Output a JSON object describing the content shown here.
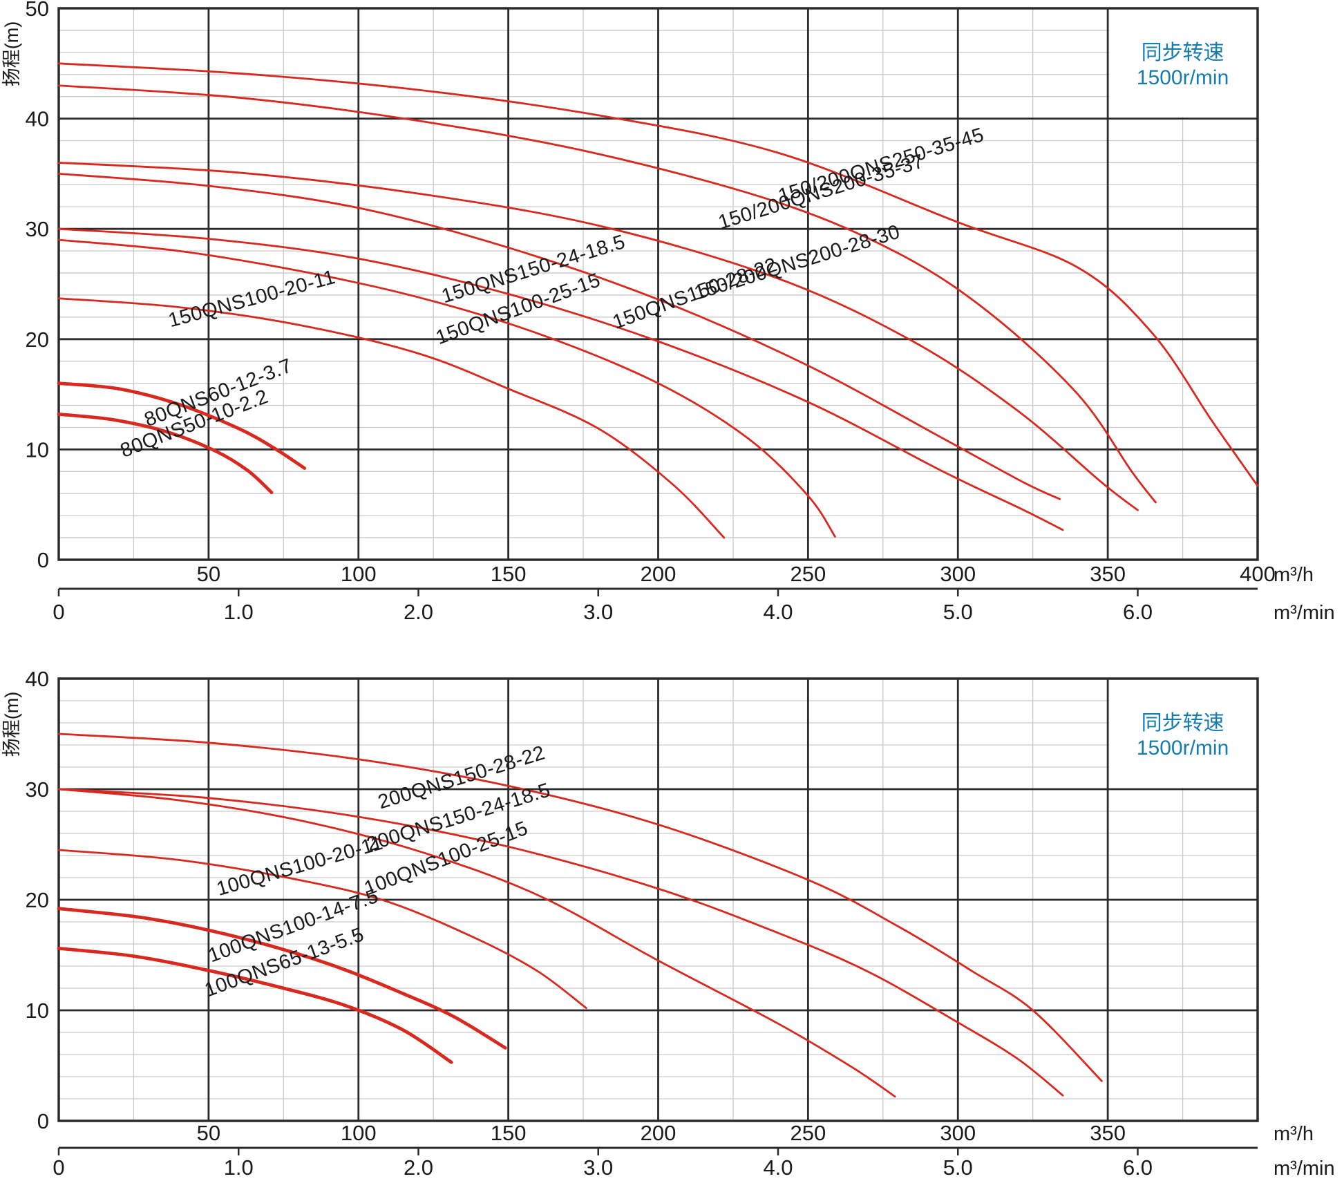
{
  "page": {
    "background": "#ffffff"
  },
  "colors": {
    "curve": "#d9291f",
    "annotation_text": "#157cb0",
    "grid_major": "#2b2b2b",
    "grid_minor": "#c9c9c9",
    "text": "#1a1a1a"
  },
  "chart_data": [
    {
      "type": "line",
      "title": "",
      "y_axis": {
        "title": "扬程(m)",
        "min": 0,
        "max": 50,
        "major_step": 10,
        "minor_step": 2,
        "ticks": [
          0,
          10,
          20,
          30,
          40,
          50
        ]
      },
      "x_axis": {
        "unit": "m³/h",
        "min": 0,
        "max": 400,
        "major_step": 50,
        "minor_step": 25,
        "tick_labels": [
          50,
          100,
          150,
          200,
          250,
          300,
          350,
          400
        ]
      },
      "x_axis_secondary": {
        "unit": "m³/min",
        "tick_labels": [
          "0",
          "1.0",
          "2.0",
          "3.0",
          "4.0",
          "5.0",
          "6.0"
        ],
        "m3h_per_unit": 60
      },
      "annotation": {
        "lines": [
          "同步转速",
          "1500r/min"
        ]
      },
      "series": [
        {
          "name": "150/200QNS250-35-45",
          "bold": false,
          "points": [
            [
              0,
              45
            ],
            [
              60,
              44.1
            ],
            [
              120,
              42.6
            ],
            [
              180,
              40.3
            ],
            [
              240,
              36.9
            ],
            [
              300,
              30.6
            ],
            [
              340,
              26.5
            ],
            [
              365,
              20.5
            ],
            [
              385,
              12.5
            ],
            [
              400,
              6.7
            ]
          ],
          "label": {
            "x": 275,
            "y": 35.2,
            "angle": -17
          }
        },
        {
          "name": "150/200QNS200-35-37",
          "bold": false,
          "points": [
            [
              0,
              43
            ],
            [
              60,
              41.9
            ],
            [
              120,
              39.8
            ],
            [
              180,
              36.8
            ],
            [
              240,
              32.4
            ],
            [
              280,
              27.8
            ],
            [
              310,
              22.5
            ],
            [
              340,
              15
            ],
            [
              358,
              8
            ],
            [
              366,
              5.2
            ]
          ],
          "label": {
            "x": 255,
            "y": 32.8,
            "angle": -17
          }
        },
        {
          "name": "150/200QNS200-28-30",
          "bold": false,
          "points": [
            [
              0,
              36
            ],
            [
              60,
              35.1
            ],
            [
              120,
              33.2
            ],
            [
              180,
              30.3
            ],
            [
              240,
              25.5
            ],
            [
              285,
              19.8
            ],
            [
              320,
              13.5
            ],
            [
              348,
              7
            ],
            [
              360,
              4.5
            ]
          ],
          "label": {
            "x": 247,
            "y": 26.4,
            "angle": -17
          }
        },
        {
          "name": "150QNS150-28-22",
          "bold": false,
          "points": [
            [
              0,
              35
            ],
            [
              50,
              33.9
            ],
            [
              100,
              31.9
            ],
            [
              150,
              28.3
            ],
            [
              200,
              23.6
            ],
            [
              250,
              17.6
            ],
            [
              295,
              11
            ],
            [
              322,
              7
            ],
            [
              334,
              5.5
            ]
          ],
          "label": {
            "x": 213,
            "y": 23.6,
            "angle": -20
          }
        },
        {
          "name": "150QNS150-24-18.5",
          "bold": false,
          "points": [
            [
              0,
              30
            ],
            [
              50,
              29.1
            ],
            [
              100,
              27.3
            ],
            [
              150,
              24.1
            ],
            [
              200,
              19.8
            ],
            [
              250,
              14.3
            ],
            [
              295,
              8
            ],
            [
              322,
              4.5
            ],
            [
              335,
              2.7
            ]
          ],
          "label": {
            "x": 159,
            "y": 25.8,
            "angle": -17
          }
        },
        {
          "name": "150QNS100-25-15",
          "bold": false,
          "points": [
            [
              0,
              29
            ],
            [
              40,
              28
            ],
            [
              80,
              26.2
            ],
            [
              120,
              23.8
            ],
            [
              160,
              20.5
            ],
            [
              200,
              16
            ],
            [
              230,
              11
            ],
            [
              250,
              5.8
            ],
            [
              259,
              2.1
            ]
          ],
          "label": {
            "x": 154,
            "y": 22.2,
            "angle": -20
          }
        },
        {
          "name": "150QNS100-20-11",
          "bold": false,
          "points": [
            [
              0,
              23.7
            ],
            [
              40,
              22.9
            ],
            [
              80,
              21.3
            ],
            [
              120,
              18.7
            ],
            [
              150,
              15.5
            ],
            [
              180,
              11.9
            ],
            [
              205,
              6.8
            ],
            [
              222,
              2
            ]
          ],
          "label": {
            "x": 65,
            "y": 23.1,
            "angle": -15
          }
        },
        {
          "name": "80QNS60-12-3.7",
          "bold": true,
          "points": [
            [
              0,
              16
            ],
            [
              20,
              15.5
            ],
            [
              40,
              14.1
            ],
            [
              60,
              11.9
            ],
            [
              72,
              10.1
            ],
            [
              82,
              8.3
            ]
          ],
          "label": {
            "x": 54,
            "y": 14.6,
            "angle": -21
          }
        },
        {
          "name": "80QNS50-10-2.2",
          "bold": true,
          "points": [
            [
              0,
              13.2
            ],
            [
              18,
              12.7
            ],
            [
              36,
              11.6
            ],
            [
              52,
              9.9
            ],
            [
              63,
              8.1
            ],
            [
              71,
              6.1
            ]
          ],
          "label": {
            "x": 46,
            "y": 11.8,
            "angle": -21
          }
        }
      ]
    },
    {
      "type": "line",
      "title": "",
      "y_axis": {
        "title": "扬程(m)",
        "min": 0,
        "max": 40,
        "major_step": 10,
        "minor_step": 2,
        "ticks": [
          0,
          10,
          20,
          30,
          40
        ]
      },
      "x_axis": {
        "unit": "m³/h",
        "min": 0,
        "max": 400,
        "major_step": 50,
        "minor_step": 25,
        "tick_labels": [
          50,
          100,
          150,
          200,
          250,
          300,
          350
        ]
      },
      "x_axis_secondary": {
        "unit": "m³/min",
        "tick_labels": [
          "0",
          "1.0",
          "2.0",
          "3.0",
          "4.0",
          "5.0",
          "6.0"
        ],
        "m3h_per_unit": 60
      },
      "annotation": {
        "lines": [
          "同步转速",
          "1500r/min"
        ]
      },
      "series": [
        {
          "name": "200QNS150-28-22",
          "bold": false,
          "points": [
            [
              0,
              35
            ],
            [
              50,
              34.2
            ],
            [
              100,
              32.7
            ],
            [
              150,
              30.3
            ],
            [
              200,
              26.8
            ],
            [
              250,
              21.8
            ],
            [
              280,
              17.6
            ],
            [
              305,
              13.5
            ],
            [
              325,
              10
            ],
            [
              348,
              3.6
            ]
          ],
          "label": {
            "x": 135,
            "y": 30.5,
            "angle": -17
          }
        },
        {
          "name": "200QNS150-24-18.5",
          "bold": false,
          "points": [
            [
              0,
              30
            ],
            [
              50,
              29.2
            ],
            [
              100,
              27.5
            ],
            [
              150,
              24.8
            ],
            [
              200,
              21
            ],
            [
              240,
              17
            ],
            [
              270,
              13.5
            ],
            [
              300,
              8.9
            ],
            [
              320,
              5.6
            ],
            [
              335,
              2.3
            ]
          ],
          "label": {
            "x": 134,
            "y": 26.9,
            "angle": -17
          }
        },
        {
          "name": "100QNS100-25-15",
          "bold": false,
          "points": [
            [
              0,
              30
            ],
            [
              40,
              29
            ],
            [
              80,
              27.2
            ],
            [
              120,
              24.4
            ],
            [
              160,
              20.4
            ],
            [
              200,
              14.5
            ],
            [
              240,
              8.8
            ],
            [
              265,
              4.8
            ],
            [
              279,
              2.2
            ]
          ],
          "label": {
            "x": 130,
            "y": 23.2,
            "angle": -21
          }
        },
        {
          "name": "100QNS100-20-11",
          "bold": false,
          "points": [
            [
              0,
              24.5
            ],
            [
              40,
              23.6
            ],
            [
              80,
              21.8
            ],
            [
              110,
              19.8
            ],
            [
              140,
              16.4
            ],
            [
              160,
              13.5
            ],
            [
              176,
              10.2
            ]
          ],
          "label": {
            "x": 81,
            "y": 22.5,
            "angle": -16
          }
        },
        {
          "name": "100QNS100-14-7.5",
          "bold": true,
          "points": [
            [
              0,
              19.2
            ],
            [
              30,
              18.3
            ],
            [
              60,
              16.6
            ],
            [
              90,
              14.2
            ],
            [
              115,
              11.5
            ],
            [
              132,
              9.4
            ],
            [
              149,
              6.6
            ]
          ],
          "label": {
            "x": 79,
            "y": 17.1,
            "angle": -20
          }
        },
        {
          "name": "100QNS65-13-5.5",
          "bold": true,
          "points": [
            [
              0,
              15.6
            ],
            [
              25,
              14.9
            ],
            [
              50,
              13.6
            ],
            [
              75,
              12
            ],
            [
              96,
              10.4
            ],
            [
              115,
              8.2
            ],
            [
              131,
              5.3
            ]
          ],
          "label": {
            "x": 76,
            "y": 13.8,
            "angle": -20
          }
        }
      ]
    }
  ]
}
